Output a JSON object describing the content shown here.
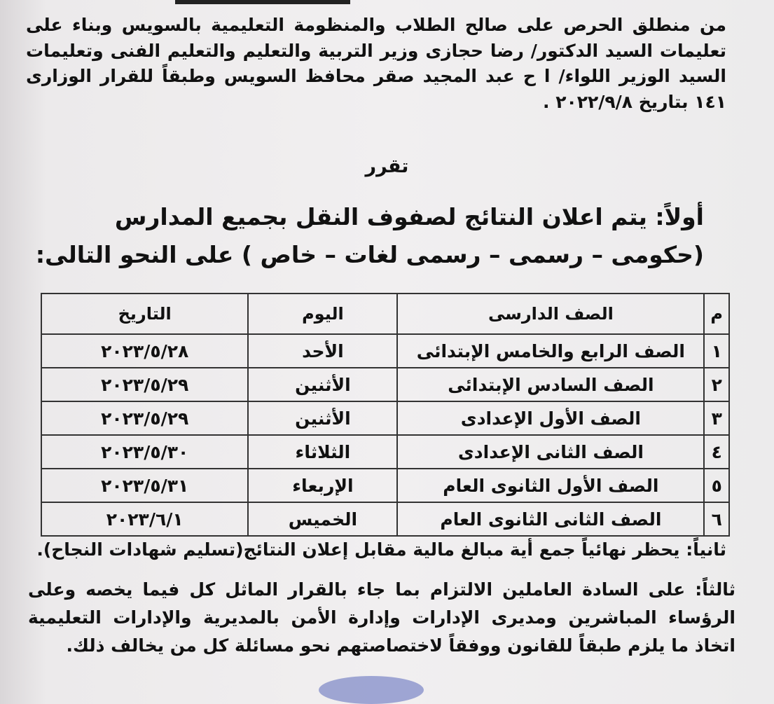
{
  "intro": "من منطلق الحرص على صالح الطلاب والمنظومة التعليمية بالسويس وبناء على تعليمات السيد الدكتور/ رضا حجازى وزير التربية والتعليم والتعليم الفنى وتعليمات السيد الوزير اللواء/ ا ح عبد المجيد صقر محافظ السويس وطبقاً للقرار الوزارى ١٤١ بتاريخ ٢٠٢٢/٩/٨ .",
  "decision": "تقرر",
  "first": {
    "line1": "أولاً:  يتم اعلان النتائج لصفوف النقل بجميع المدارس",
    "line2": "(حكومى – رسمى – رسمى لغات – خاص ) على النحو التالى:"
  },
  "table": {
    "headers": {
      "num": "م",
      "grade": "الصف الدارسى",
      "day": "اليوم",
      "date": "التاريخ"
    },
    "rows": [
      {
        "num": "١",
        "grade": "الصف الرابع والخامس الإبتدائى",
        "day": "الأحد",
        "date": "٢٠٢٣/٥/٢٨"
      },
      {
        "num": "٢",
        "grade": "الصف السادس الإبتدائى",
        "day": "الأثنين",
        "date": "٢٠٢٣/٥/٢٩"
      },
      {
        "num": "٣",
        "grade": "الصف الأول الإعدادى",
        "day": "الأثنين",
        "date": "٢٠٢٣/٥/٢٩"
      },
      {
        "num": "٤",
        "grade": "الصف الثانى الإعدادى",
        "day": "الثلاثاء",
        "date": "٢٠٢٣/٥/٣٠"
      },
      {
        "num": "٥",
        "grade": "الصف الأول الثانوى العام",
        "day": "الإربعاء",
        "date": "٢٠٢٣/٥/٣١"
      },
      {
        "num": "٦",
        "grade": "الصف الثانى الثانوى العام",
        "day": "الخميس",
        "date": "٢٠٢٣/٦/١"
      }
    ]
  },
  "second": "ثانياً: يحظر نهائياً جمع أية مبالغ مالية مقابل إعلان النتائج(تسليم شهادات النجاح).",
  "third": "ثالثاً: على السادة العاملين الالتزام بما جاء بالقرار الماثل كل فيما يخصه وعلى الرؤساء المباشرين ومديرى الإدارات وإدارة الأمن بالمديرية والإدارات التعليمية اتخاذ ما يلزم طبقاً للقانون ووفقاً لاختصاصتهم نحو مسائلة كل من يخالف ذلك."
}
